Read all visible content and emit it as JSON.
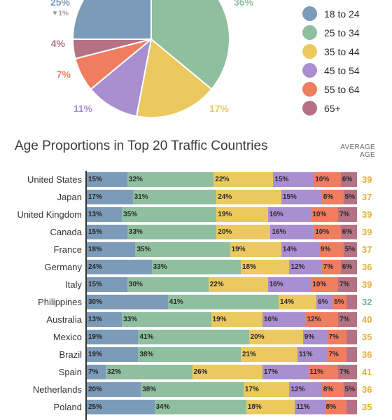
{
  "colors": {
    "18 to 24": "#7b9bb9",
    "25 to 34": "#8fbf9f",
    "35 to 44": "#ecc95e",
    "45 to 54": "#a98fd0",
    "55 to 64": "#f07d5f",
    "65+": "#b57284",
    "avg_default": "#e2b13e",
    "avg_highlight": "#79ad9a",
    "delta": "#999999"
  },
  "pie_labels": [
    {
      "key": "18 to 24",
      "text": "25%",
      "sub": "▼1%"
    },
    {
      "key": "25 to 34",
      "text": "36%"
    },
    {
      "key": "35 to 44",
      "text": "17%"
    },
    {
      "key": "45 to 54",
      "text": "11%"
    },
    {
      "key": "55 to 64",
      "text": "7%"
    },
    {
      "key": "65+",
      "text": "4%"
    }
  ],
  "legend": [
    "18 to 24",
    "25 to 34",
    "35 to 44",
    "45 to 54",
    "55 to 64",
    "65+"
  ],
  "section": {
    "title": "Age Proportions in Top 20 Traffic Countries",
    "avg_header": "AVERAGE AGE"
  },
  "chart_data": [
    {
      "type": "pie",
      "categories": [
        "18 to 24",
        "25 to 34",
        "35 to 44",
        "45 to 54",
        "55 to 64",
        "65+"
      ],
      "values": [
        25,
        36,
        17,
        11,
        7,
        4
      ]
    },
    {
      "type": "bar",
      "stacked": true,
      "orientation": "horizontal",
      "title": "Age Proportions in Top 20 Traffic Countries",
      "categories": [
        "United States",
        "Japan",
        "United Kingdom",
        "Canada",
        "France",
        "Germany",
        "Italy",
        "Philippines",
        "Australia",
        "Mexico",
        "Brazil",
        "Spain",
        "Netherlands",
        "Poland"
      ],
      "series": [
        {
          "name": "18 to 24",
          "values": [
            15,
            17,
            13,
            15,
            18,
            24,
            15,
            30,
            13,
            19,
            19,
            7,
            20,
            25
          ]
        },
        {
          "name": "25 to 34",
          "values": [
            32,
            31,
            35,
            33,
            35,
            33,
            30,
            41,
            33,
            41,
            38,
            32,
            38,
            34
          ]
        },
        {
          "name": "35 to 44",
          "values": [
            22,
            24,
            19,
            20,
            19,
            18,
            22,
            14,
            19,
            20,
            21,
            26,
            17,
            18
          ]
        },
        {
          "name": "45 to 54",
          "values": [
            15,
            15,
            16,
            16,
            14,
            12,
            16,
            6,
            16,
            9,
            11,
            17,
            12,
            11
          ]
        },
        {
          "name": "55 to 64",
          "values": [
            10,
            8,
            10,
            10,
            9,
            7,
            10,
            5,
            12,
            7,
            7,
            11,
            8,
            8
          ]
        },
        {
          "name": "65+",
          "values": [
            6,
            5,
            7,
            6,
            5,
            6,
            7,
            4,
            7,
            4,
            4,
            7,
            5,
            4
          ]
        }
      ],
      "hidden_labels": [
        [
          false,
          false,
          false,
          false,
          false,
          false
        ],
        [
          false,
          false,
          false,
          false,
          false,
          false
        ],
        [
          false,
          false,
          false,
          false,
          false,
          false
        ],
        [
          false,
          false,
          false,
          false,
          false,
          false
        ],
        [
          false,
          false,
          false,
          false,
          false,
          false
        ],
        [
          false,
          false,
          false,
          false,
          false,
          false
        ],
        [
          false,
          false,
          false,
          false,
          false,
          false
        ],
        [
          false,
          false,
          false,
          false,
          false,
          true
        ],
        [
          false,
          false,
          false,
          false,
          false,
          false
        ],
        [
          false,
          false,
          false,
          false,
          false,
          true
        ],
        [
          false,
          false,
          false,
          false,
          false,
          true
        ],
        [
          false,
          false,
          false,
          false,
          false,
          false
        ],
        [
          false,
          false,
          false,
          false,
          false,
          false
        ],
        [
          false,
          false,
          false,
          false,
          false,
          true
        ]
      ],
      "average_age": [
        39,
        37,
        39,
        39,
        37,
        36,
        39,
        32,
        40,
        35,
        36,
        41,
        36,
        35
      ],
      "xlim": [
        0,
        100
      ]
    }
  ]
}
